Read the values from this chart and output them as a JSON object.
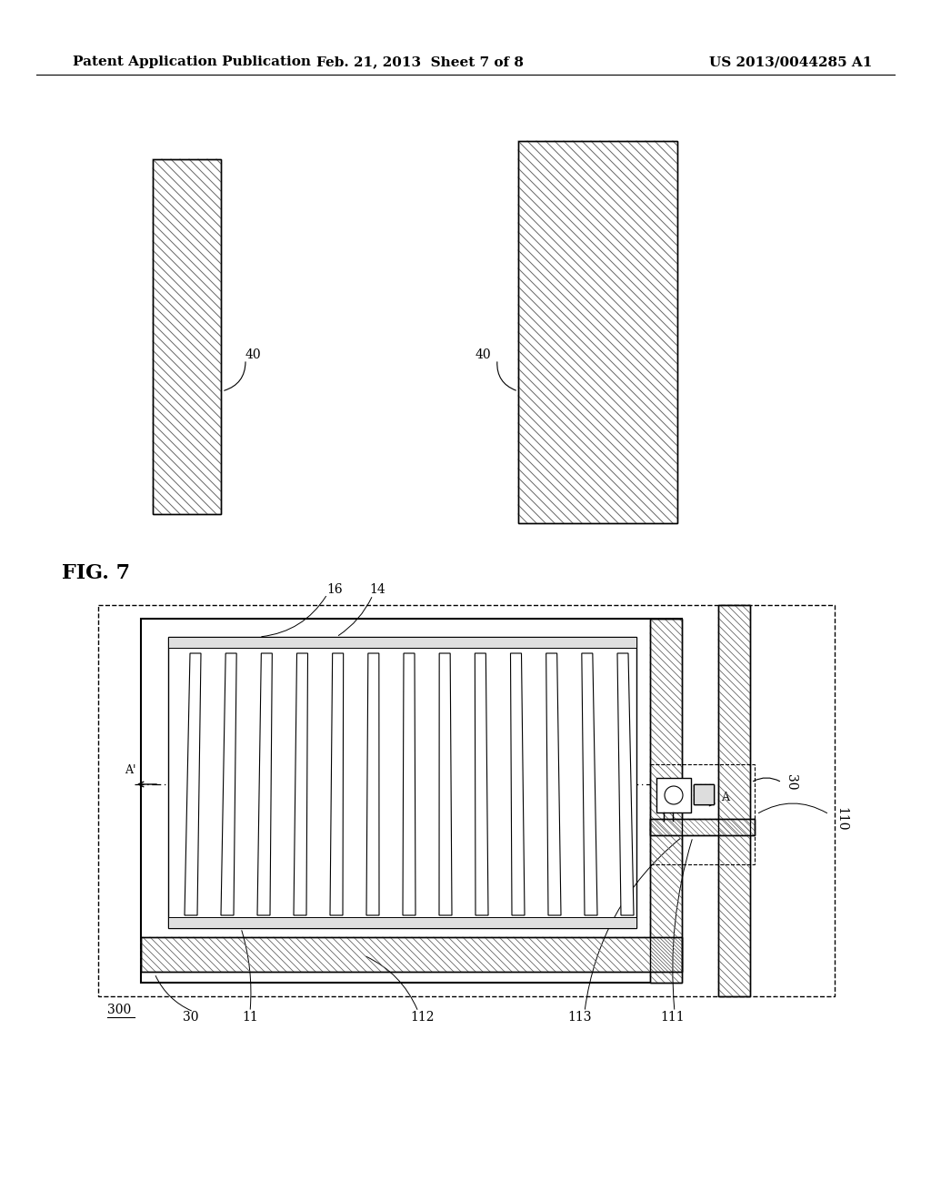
{
  "bg_color": "#ffffff",
  "line_color": "#000000",
  "header_left": "Patent Application Publication",
  "header_mid": "Feb. 21, 2013  Sheet 7 of 8",
  "header_right": "US 2013/0044285 A1",
  "fig_label": "FIG. 7",
  "fig_number": "300"
}
